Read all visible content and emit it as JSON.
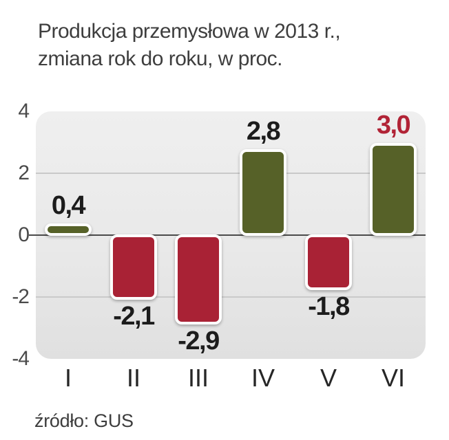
{
  "title": {
    "line1": "Produkcja przemysłowa w 2013 r.,",
    "line2": "zmiana rok do roku, w proc."
  },
  "source": "źródło: GUS",
  "chart_data": {
    "type": "bar",
    "title": "Produkcja przemysłowa w 2013 r., zmiana rok do roku, w proc.",
    "categories": [
      "I",
      "II",
      "III",
      "IV",
      "V",
      "VI"
    ],
    "values": [
      0.4,
      -2.1,
      -2.9,
      2.8,
      -1.8,
      3.0
    ],
    "value_labels": [
      "0,4",
      "-2,1",
      "-2,9",
      "2,8",
      "-1,8",
      "3,0"
    ],
    "highlighted_index": 5,
    "xlabel": "",
    "ylabel": "",
    "ylim": [
      -4,
      4
    ],
    "yticks": [
      4,
      2,
      0,
      -2,
      -4
    ],
    "grid": "horizontal gridlines at 2, 0, -2; zero line emphasized; no legend",
    "legend_position": "none",
    "colors": {
      "positive_bar": "#566128",
      "negative_bar": "#a92235",
      "bar_border": "#ffffff",
      "label_default": "#1c1c1c",
      "label_highlight": "#b12336",
      "plot_background": "#e9e9e9",
      "gridline": "#c9c9c9",
      "zero_line": "#4a4a4a",
      "title_text": "#3e3e3e"
    }
  }
}
